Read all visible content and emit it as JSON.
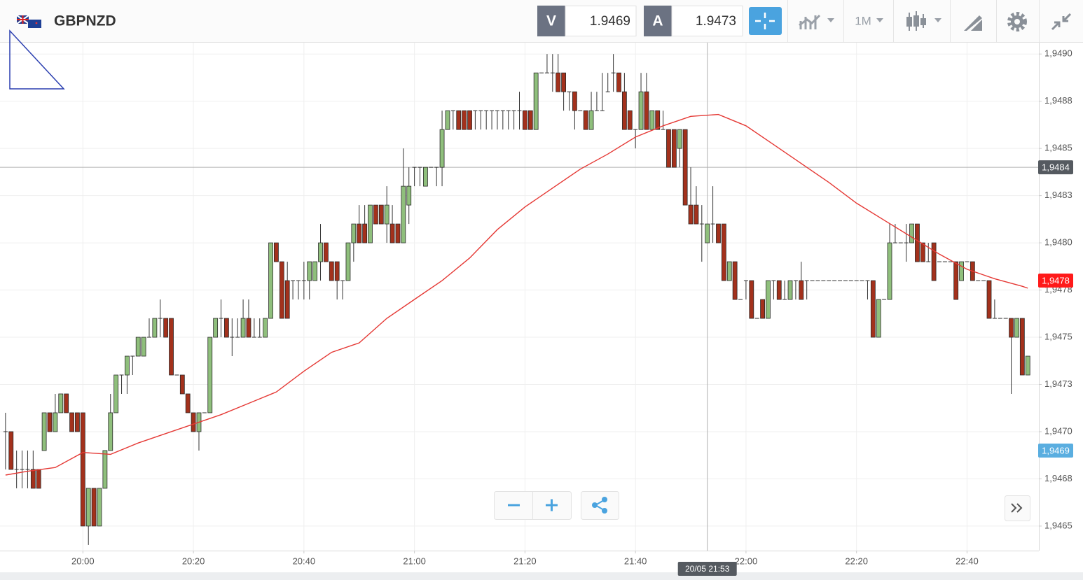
{
  "header": {
    "symbol": "GBPNZD",
    "sell_label": "V",
    "sell_price": 1.9469,
    "buy_label": "A",
    "buy_price": 1.9473,
    "timeframe": "1M"
  },
  "chart_data": {
    "type": "candlestick",
    "x": [
      "19:46",
      "19:47",
      "19:48",
      "19:49",
      "19:50",
      "19:51",
      "19:52",
      "19:53",
      "19:54",
      "19:55",
      "19:56",
      "19:57",
      "19:58",
      "19:59",
      "20:00",
      "20:01",
      "20:02",
      "20:03",
      "20:04",
      "20:05",
      "20:06",
      "20:07",
      "20:08",
      "20:09",
      "20:10",
      "20:11",
      "20:12",
      "20:13",
      "20:14",
      "20:15",
      "20:16",
      "20:17",
      "20:18",
      "20:19",
      "20:20",
      "20:21",
      "20:22",
      "20:23",
      "20:24",
      "20:25",
      "20:26",
      "20:27",
      "20:28",
      "20:29",
      "20:30",
      "20:31",
      "20:32",
      "20:33",
      "20:34",
      "20:35",
      "20:36",
      "20:37",
      "20:38",
      "20:39",
      "20:40",
      "20:41",
      "20:42",
      "20:43",
      "20:44",
      "20:45",
      "20:46",
      "20:47",
      "20:48",
      "20:49",
      "20:50",
      "20:51",
      "20:52",
      "20:53",
      "20:54",
      "20:55",
      "20:56",
      "20:57",
      "20:58",
      "20:59",
      "21:00",
      "21:01",
      "21:02",
      "21:03",
      "21:04",
      "21:05",
      "21:06",
      "21:07",
      "21:08",
      "21:09",
      "21:10",
      "21:11",
      "21:12",
      "21:13",
      "21:14",
      "21:15",
      "21:16",
      "21:17",
      "21:18",
      "21:19",
      "21:20",
      "21:21",
      "21:22",
      "21:23",
      "21:24",
      "21:25",
      "21:26",
      "21:27",
      "21:28",
      "21:29",
      "21:30",
      "21:31",
      "21:32",
      "21:33",
      "21:34",
      "21:35",
      "21:36",
      "21:37",
      "21:38",
      "21:39",
      "21:40",
      "21:41",
      "21:42",
      "21:43",
      "21:44",
      "21:45",
      "21:46",
      "21:47",
      "21:48",
      "21:49",
      "21:50",
      "21:51",
      "21:52",
      "21:53",
      "21:54",
      "21:55",
      "21:56",
      "21:57",
      "21:58",
      "21:59",
      "22:00",
      "22:01",
      "22:02",
      "22:03",
      "22:04",
      "22:05",
      "22:06",
      "22:07",
      "22:08",
      "22:09",
      "22:10",
      "22:11",
      "22:12",
      "22:13",
      "22:14",
      "22:15",
      "22:16",
      "22:17",
      "22:18",
      "22:19",
      "22:20",
      "22:21",
      "22:22",
      "22:23",
      "22:24",
      "22:25",
      "22:26",
      "22:27",
      "22:28",
      "22:29",
      "22:30",
      "22:31",
      "22:32",
      "22:33",
      "22:34",
      "22:35",
      "22:36",
      "22:37",
      "22:38",
      "22:39",
      "22:40",
      "22:41",
      "22:42",
      "22:43",
      "22:44",
      "22:45",
      "22:46",
      "22:47",
      "22:48",
      "22:49",
      "22:50",
      "22:51"
    ],
    "open": [
      1.947,
      1.947,
      1.9468,
      1.9468,
      1.9468,
      1.9468,
      1.9468,
      1.9469,
      1.9471,
      1.947,
      1.9471,
      1.9472,
      1.9471,
      1.9471,
      1.9471,
      1.9465,
      1.9467,
      1.9465,
      1.9467,
      1.9469,
      1.9471,
      1.9473,
      1.9473,
      1.9474,
      1.9474,
      1.9474,
      1.9475,
      1.9475,
      1.9476,
      1.9476,
      1.9476,
      1.9473,
      1.9473,
      1.9472,
      1.9471,
      1.947,
      1.9471,
      1.9471,
      1.9475,
      1.9476,
      1.9476,
      1.9475,
      1.9475,
      1.9475,
      1.9476,
      1.9475,
      1.9475,
      1.9475,
      1.9476,
      1.948,
      1.9479,
      1.9478,
      1.9478,
      1.9478,
      1.9478,
      1.9478,
      1.9478,
      1.9479,
      1.948,
      1.9479,
      1.9479,
      1.9478,
      1.9478,
      1.948,
      1.9481,
      1.9481,
      1.948,
      1.9482,
      1.9482,
      1.9481,
      1.9481,
      1.9481,
      1.948,
      1.9482,
      1.9484,
      1.9484,
      1.9483,
      1.9484,
      1.9484,
      1.9484,
      1.9486,
      1.9487,
      1.9487,
      1.9487,
      1.9487,
      1.9487,
      1.9487,
      1.9487,
      1.9487,
      1.9487,
      1.9487,
      1.9487,
      1.9487,
      1.9487,
      1.9487,
      1.9487,
      1.9486,
      1.9489,
      1.9489,
      1.9489,
      1.9489,
      1.9489,
      1.9488,
      1.9488,
      1.9487,
      1.9487,
      1.9486,
      1.9487,
      1.9487,
      1.9488,
      1.9489,
      1.9489,
      1.9488,
      1.9487,
      1.9486,
      1.9486,
      1.9488,
      1.9486,
      1.9487,
      1.9486,
      1.9486,
      1.9486,
      1.9485,
      1.9486,
      1.9482,
      1.9482,
      1.9481,
      1.948,
      1.9481,
      1.9481,
      1.9481,
      1.9478,
      1.9479,
      1.9477,
      1.9478,
      1.9478,
      1.9476,
      1.9477,
      1.9476,
      1.9478,
      1.9478,
      1.9477,
      1.9477,
      1.9478,
      1.9478,
      1.9478,
      1.9478,
      1.9478,
      1.9478,
      1.9478,
      1.9478,
      1.9478,
      1.9478,
      1.9478,
      1.9478,
      1.9478,
      1.9478,
      1.9478,
      1.9475,
      1.9477,
      1.9477,
      1.948,
      1.948,
      1.948,
      1.948,
      1.9481,
      1.948,
      1.9479,
      1.948,
      1.9479,
      1.9479,
      1.9479,
      1.9479,
      1.9478,
      1.9479,
      1.9479,
      1.9478,
      1.9478,
      1.9478,
      1.9476,
      1.9476,
      1.9476,
      1.9476,
      1.9475,
      1.9476,
      1.9473
    ],
    "high": [
      1.9471,
      1.947,
      1.9469,
      1.9469,
      1.9469,
      1.9469,
      1.9468,
      1.9471,
      1.9471,
      1.9472,
      1.9472,
      1.9472,
      1.9471,
      1.9471,
      1.9471,
      1.9467,
      1.9467,
      1.9467,
      1.9469,
      1.9472,
      1.9473,
      1.9473,
      1.9474,
      1.9474,
      1.9475,
      1.9475,
      1.9476,
      1.9476,
      1.9477,
      1.9476,
      1.9476,
      1.9473,
      1.9473,
      1.9472,
      1.9471,
      1.9471,
      1.9471,
      1.9475,
      1.9476,
      1.9477,
      1.9476,
      1.9476,
      1.9476,
      1.9477,
      1.9477,
      1.9476,
      1.9476,
      1.9476,
      1.948,
      1.948,
      1.9479,
      1.9479,
      1.9478,
      1.9478,
      1.9479,
      1.9479,
      1.9479,
      1.9481,
      1.948,
      1.9479,
      1.9479,
      1.9478,
      1.948,
      1.9481,
      1.9482,
      1.9482,
      1.9482,
      1.9482,
      1.9482,
      1.9483,
      1.9482,
      1.9481,
      1.9485,
      1.9484,
      1.9484,
      1.9484,
      1.9484,
      1.9484,
      1.9484,
      1.9487,
      1.9487,
      1.9487,
      1.9487,
      1.9487,
      1.9487,
      1.9487,
      1.9487,
      1.9487,
      1.9487,
      1.9487,
      1.9487,
      1.9487,
      1.9487,
      1.9488,
      1.9487,
      1.9487,
      1.9489,
      1.9489,
      1.949,
      1.949,
      1.949,
      1.9489,
      1.9488,
      1.9488,
      1.9487,
      1.9487,
      1.9488,
      1.9488,
      1.9489,
      1.9489,
      1.949,
      1.9489,
      1.9489,
      1.9487,
      1.9486,
      1.9489,
      1.9489,
      1.9487,
      1.9487,
      1.9487,
      1.9486,
      1.9486,
      1.9486,
      1.9486,
      1.9484,
      1.9483,
      1.9482,
      1.9481,
      1.9483,
      1.9481,
      1.9481,
      1.9479,
      1.9479,
      1.9477,
      1.9478,
      1.9478,
      1.9476,
      1.9477,
      1.9478,
      1.9478,
      1.9478,
      1.9478,
      1.9478,
      1.9478,
      1.9479,
      1.9478,
      1.9478,
      1.9478,
      1.9478,
      1.9478,
      1.9478,
      1.9478,
      1.9478,
      1.9478,
      1.9478,
      1.9478,
      1.9478,
      1.9478,
      1.9477,
      1.9477,
      1.9481,
      1.9481,
      1.948,
      1.9481,
      1.9481,
      1.9481,
      1.948,
      1.948,
      1.948,
      1.9479,
      1.9479,
      1.9479,
      1.9479,
      1.9479,
      1.9479,
      1.9479,
      1.9478,
      1.9478,
      1.9478,
      1.9477,
      1.9476,
      1.9476,
      1.9476,
      1.9476,
      1.9476,
      1.9474
    ],
    "low": [
      1.9468,
      1.9468,
      1.9467,
      1.9467,
      1.9467,
      1.9467,
      1.9467,
      1.9469,
      1.947,
      1.947,
      1.9471,
      1.9471,
      1.947,
      1.947,
      1.9465,
      1.9464,
      1.9465,
      1.9465,
      1.9467,
      1.9469,
      1.9471,
      1.9472,
      1.9472,
      1.9473,
      1.9474,
      1.9474,
      1.9475,
      1.9475,
      1.9475,
      1.9475,
      1.9473,
      1.9473,
      1.9472,
      1.9471,
      1.947,
      1.9469,
      1.9471,
      1.9471,
      1.9475,
      1.9475,
      1.9475,
      1.9474,
      1.9475,
      1.9475,
      1.9475,
      1.9475,
      1.9475,
      1.9475,
      1.9476,
      1.9479,
      1.9476,
      1.9476,
      1.9477,
      1.9477,
      1.9477,
      1.9477,
      1.9478,
      1.9478,
      1.9479,
      1.9478,
      1.9477,
      1.9477,
      1.9478,
      1.9479,
      1.948,
      1.948,
      1.948,
      1.9481,
      1.9481,
      1.948,
      1.948,
      1.948,
      1.948,
      1.9481,
      1.9483,
      1.9483,
      1.9483,
      1.9484,
      1.9483,
      1.9483,
      1.9486,
      1.9486,
      1.9486,
      1.9486,
      1.9486,
      1.9486,
      1.9486,
      1.9486,
      1.9486,
      1.9486,
      1.9486,
      1.9486,
      1.9486,
      1.9486,
      1.9486,
      1.9486,
      1.9486,
      1.9489,
      1.9489,
      1.9488,
      1.9488,
      1.9487,
      1.9487,
      1.9486,
      1.9487,
      1.9486,
      1.9486,
      1.9487,
      1.9487,
      1.9488,
      1.9488,
      1.9488,
      1.9486,
      1.9486,
      1.9485,
      1.9486,
      1.9486,
      1.9486,
      1.9486,
      1.9486,
      1.9484,
      1.9484,
      1.9484,
      1.9482,
      1.9481,
      1.9481,
      1.9479,
      1.948,
      1.948,
      1.948,
      1.9478,
      1.9478,
      1.9477,
      1.9477,
      1.9477,
      1.9476,
      1.9476,
      1.9476,
      1.9476,
      1.9477,
      1.9477,
      1.9477,
      1.9477,
      1.9477,
      1.9477,
      1.9477,
      1.9478,
      1.9478,
      1.9478,
      1.9478,
      1.9478,
      1.9478,
      1.9478,
      1.9478,
      1.9478,
      1.9478,
      1.9477,
      1.9475,
      1.9475,
      1.9477,
      1.9477,
      1.948,
      1.948,
      1.9479,
      1.948,
      1.9479,
      1.9479,
      1.9479,
      1.9478,
      1.9479,
      1.9479,
      1.9479,
      1.9477,
      1.9478,
      1.9479,
      1.9478,
      1.9478,
      1.9478,
      1.9476,
      1.9476,
      1.9476,
      1.9476,
      1.9472,
      1.9475,
      1.9473,
      1.9473
    ],
    "close": [
      1.947,
      1.9468,
      1.9468,
      1.9468,
      1.9468,
      1.9467,
      1.9467,
      1.9471,
      1.947,
      1.9471,
      1.9472,
      1.9471,
      1.947,
      1.947,
      1.9465,
      1.9467,
      1.9465,
      1.9467,
      1.9469,
      1.9471,
      1.9473,
      1.9473,
      1.9474,
      1.9474,
      1.9475,
      1.9475,
      1.9475,
      1.9476,
      1.9476,
      1.9475,
      1.9473,
      1.9473,
      1.9472,
      1.9471,
      1.947,
      1.9471,
      1.9471,
      1.9475,
      1.9476,
      1.9476,
      1.9475,
      1.9475,
      1.9475,
      1.9476,
      1.9475,
      1.9475,
      1.9475,
      1.9476,
      1.948,
      1.9479,
      1.9476,
      1.9476,
      1.9478,
      1.9478,
      1.9478,
      1.9479,
      1.9479,
      1.948,
      1.9479,
      1.9478,
      1.9478,
      1.9478,
      1.948,
      1.9481,
      1.948,
      1.948,
      1.9482,
      1.9481,
      1.9481,
      1.9482,
      1.948,
      1.948,
      1.9483,
      1.9483,
      1.9484,
      1.9484,
      1.9484,
      1.9484,
      1.9484,
      1.9486,
      1.9487,
      1.9487,
      1.9486,
      1.9486,
      1.9486,
      1.9487,
      1.9487,
      1.9487,
      1.9487,
      1.9487,
      1.9487,
      1.9487,
      1.9487,
      1.9487,
      1.9486,
      1.9486,
      1.9489,
      1.9489,
      1.9489,
      1.9489,
      1.9488,
      1.9488,
      1.9488,
      1.9487,
      1.9487,
      1.9486,
      1.9487,
      1.9487,
      1.9487,
      1.9488,
      1.9489,
      1.9488,
      1.9486,
      1.9486,
      1.9486,
      1.9488,
      1.9486,
      1.9487,
      1.9486,
      1.9486,
      1.9484,
      1.9484,
      1.9486,
      1.9482,
      1.9481,
      1.9481,
      1.9481,
      1.9481,
      1.9481,
      1.948,
      1.9478,
      1.9479,
      1.9477,
      1.9477,
      1.9478,
      1.9476,
      1.9476,
      1.9476,
      1.9478,
      1.9478,
      1.9477,
      1.9477,
      1.9478,
      1.9478,
      1.9477,
      1.9478,
      1.9478,
      1.9478,
      1.9478,
      1.9478,
      1.9478,
      1.9478,
      1.9478,
      1.9478,
      1.9478,
      1.9478,
      1.9478,
      1.9475,
      1.9477,
      1.9477,
      1.948,
      1.948,
      1.948,
      1.948,
      1.9481,
      1.9479,
      1.9479,
      1.9479,
      1.9478,
      1.9479,
      1.9479,
      1.9479,
      1.9477,
      1.9479,
      1.9479,
      1.9478,
      1.9478,
      1.9478,
      1.9476,
      1.9476,
      1.9476,
      1.9476,
      1.9475,
      1.9476,
      1.9473,
      1.9474
    ],
    "up_color": "#8fbf7c",
    "down_color": "#a3311c",
    "moving_average": {
      "color": "#e53935",
      "x": [
        "19:46",
        "19:50",
        "19:55",
        "20:00",
        "20:05",
        "20:10",
        "20:15",
        "20:20",
        "20:25",
        "20:30",
        "20:35",
        "20:40",
        "20:45",
        "20:50",
        "20:55",
        "21:00",
        "21:05",
        "21:10",
        "21:15",
        "21:20",
        "21:25",
        "21:30",
        "21:35",
        "21:40",
        "21:45",
        "21:50",
        "21:55",
        "22:00",
        "22:05",
        "22:10",
        "22:15",
        "22:20",
        "22:25",
        "22:30",
        "22:35",
        "22:40",
        "22:45",
        "22:50",
        "22:51"
      ],
      "values": [
        1.94677,
        1.94679,
        1.94681,
        1.94689,
        1.94688,
        1.94694,
        1.94699,
        1.94704,
        1.94709,
        1.94715,
        1.94721,
        1.94732,
        1.94742,
        1.94747,
        1.9476,
        1.9477,
        1.9478,
        1.94792,
        1.94807,
        1.94819,
        1.94829,
        1.94839,
        1.94847,
        1.94856,
        1.94862,
        1.94867,
        1.94868,
        1.94862,
        1.94852,
        1.94842,
        1.94832,
        1.94821,
        1.94812,
        1.94803,
        1.94794,
        1.94786,
        1.94781,
        1.94777,
        1.94776
      ]
    },
    "xlim": [
      "19:45",
      "22:53"
    ],
    "xticks": [
      "20:00",
      "20:20",
      "20:40",
      "21:00",
      "21:20",
      "21:40",
      "22:00",
      "22:20",
      "22:40"
    ],
    "ylim": [
      1.94637,
      1.94906
    ],
    "yticks": [
      {
        "value": 1.949,
        "label": "1,9490"
      },
      {
        "value": 1.94875,
        "label": "1,9488"
      },
      {
        "value": 1.9485,
        "label": "1,9485"
      },
      {
        "value": 1.94825,
        "label": "1,9483"
      },
      {
        "value": 1.948,
        "label": "1,9480"
      },
      {
        "value": 1.94775,
        "label": "1,9478"
      },
      {
        "value": 1.9475,
        "label": "1,9475"
      },
      {
        "value": 1.94725,
        "label": "1,9473"
      },
      {
        "value": 1.947,
        "label": "1,9470"
      },
      {
        "value": 1.94675,
        "label": "1,9468"
      },
      {
        "value": 1.9465,
        "label": "1,9465"
      }
    ],
    "grid": true,
    "price_labels": [
      {
        "value": 1.9478,
        "label": "1,9478",
        "color": "#ff1a1a"
      },
      {
        "value": 1.9469,
        "label": "1,9469",
        "color": "#5aaee0"
      }
    ],
    "crosshair": {
      "x": "21:53",
      "x_label": "20/05 21:53",
      "y": 1.9484,
      "y_label": "1,9484",
      "color": "#555a60"
    }
  }
}
